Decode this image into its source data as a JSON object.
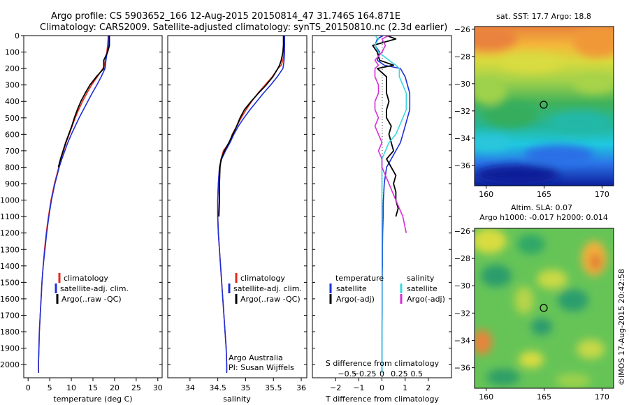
{
  "header": {
    "title_line1": "Argo profile: CS 5903652_166 12-Aug-2015 20150814_47 31.746S 164.871E",
    "title_line2": "Climatology: CARS2009. Satellite-adjusted climatology: synTS_20150810.nc (2.3d earlier)"
  },
  "colors": {
    "climatology": "#e8291c",
    "satellite": "#1d2fd8",
    "argo": "#000000",
    "salinity_satellite": "#39d8e0",
    "salinity_argo": "#d62fd6",
    "map_marker": "#000000"
  },
  "chart_data": [
    {
      "type": "line",
      "panel": "temperature",
      "xlabel": "temperature (deg C)",
      "xlim": [
        -1,
        31
      ],
      "xticks": [
        0,
        5,
        10,
        15,
        20,
        25,
        30
      ],
      "ylim": [
        2080,
        0
      ],
      "yticks": [
        0,
        100,
        200,
        300,
        400,
        500,
        600,
        700,
        800,
        900,
        1000,
        1100,
        1200,
        1300,
        1400,
        1500,
        1600,
        1700,
        1800,
        1900,
        2000
      ],
      "depth": [
        0,
        20,
        60,
        100,
        150,
        180,
        200,
        250,
        300,
        350,
        400,
        450,
        500,
        550,
        600,
        650,
        700,
        750,
        800,
        900,
        1000,
        1100,
        1200,
        1300,
        1400,
        1500,
        1600,
        1700,
        1800,
        1900,
        2000,
        2050
      ],
      "series": [
        {
          "name": "climatology",
          "color_key": "climatology",
          "values": [
            18.5,
            18.5,
            18.4,
            18.2,
            17.9,
            17.7,
            17.3,
            16.0,
            14.7,
            13.6,
            12.6,
            11.7,
            10.9,
            10.2,
            9.5,
            8.8,
            8.2,
            7.6,
            7.1,
            6.1,
            5.3,
            4.7,
            4.2,
            3.8,
            3.5,
            3.2,
            3.0,
            2.8,
            2.6,
            2.5,
            2.4,
            2.4
          ]
        },
        {
          "name": "satellite-adj. clim.",
          "color_key": "satellite",
          "values": [
            18.6,
            18.6,
            18.5,
            18.3,
            18.0,
            17.9,
            17.8,
            16.9,
            15.9,
            14.8,
            13.8,
            12.8,
            11.8,
            10.9,
            10.0,
            9.2,
            8.5,
            7.8,
            7.2,
            6.2,
            5.4,
            4.8,
            4.3,
            3.9,
            3.5,
            3.2,
            3.0,
            2.8,
            2.6,
            2.5,
            2.4,
            2.4
          ]
        },
        {
          "name": "Argo(..raw -QC)",
          "color_key": "argo",
          "values": [
            18.8,
            18.8,
            18.8,
            18.4,
            17.5,
            17.5,
            17.5,
            15.8,
            14.3,
            13.2,
            12.2,
            11.4,
            10.7,
            10.1,
            9.4,
            8.7,
            8.1,
            7.5,
            7.0
          ]
        }
      ],
      "legend": [
        "climatology",
        "satellite-adj. clim.",
        "Argo(..raw -QC)"
      ]
    },
    {
      "type": "line",
      "panel": "salinity",
      "xlabel": "salinity",
      "xlim": [
        33.6,
        36.1
      ],
      "xticks": [
        34,
        34.5,
        35,
        35.5,
        36
      ],
      "ylim": [
        2080,
        0
      ],
      "depth": [
        0,
        20,
        60,
        100,
        150,
        180,
        200,
        250,
        300,
        350,
        400,
        450,
        500,
        550,
        600,
        650,
        700,
        750,
        800,
        900,
        1000,
        1100,
        1200,
        1300,
        1400,
        1500,
        1600,
        1700,
        1800,
        1900,
        2000,
        2050
      ],
      "series": [
        {
          "name": "climatology",
          "color_key": "climatology",
          "values": [
            35.69,
            35.69,
            35.69,
            35.69,
            35.67,
            35.64,
            35.58,
            35.48,
            35.35,
            35.22,
            35.11,
            35.01,
            34.92,
            34.84,
            34.76,
            34.71,
            34.6,
            34.56,
            34.53,
            34.51,
            34.5,
            34.5,
            34.51,
            34.53,
            34.55,
            34.57,
            34.59,
            34.61,
            34.63,
            34.65,
            34.66,
            34.66
          ]
        },
        {
          "name": "satellite-adj. clim.",
          "color_key": "satellite",
          "values": [
            35.7,
            35.7,
            35.7,
            35.7,
            35.69,
            35.68,
            35.67,
            35.57,
            35.45,
            35.32,
            35.2,
            35.08,
            34.97,
            34.87,
            34.79,
            34.72,
            34.64,
            34.57,
            34.53,
            34.51,
            34.5,
            34.5,
            34.51,
            34.53,
            34.55,
            34.57,
            34.59,
            34.61,
            34.63,
            34.65,
            34.66,
            34.66
          ]
        },
        {
          "name": "Argo(..raw -QC)",
          "color_key": "argo",
          "values": [
            35.68,
            35.68,
            35.68,
            35.67,
            35.64,
            35.61,
            35.58,
            35.49,
            35.37,
            35.23,
            35.1,
            34.98,
            34.9,
            34.84,
            34.77,
            34.7,
            34.62,
            34.56,
            34.54,
            34.53,
            34.53,
            34.52
          ]
        }
      ],
      "legend": [
        "climatology",
        "satellite-adj. clim.",
        "Argo(..raw -QC)"
      ],
      "annotation": [
        "Argo Australia",
        "PI: Susan Wijffels"
      ]
    },
    {
      "type": "line",
      "panel": "difference",
      "xlabel_bottom": "T difference from climatology",
      "xlabel_top": "S difference from climatology",
      "xlim": [
        -3,
        3
      ],
      "xticks_bottom": [
        -2,
        -1,
        0,
        1,
        2
      ],
      "xticks_top": [
        -0.5,
        -0.25,
        0,
        0.25,
        0.5
      ],
      "ylim": [
        2080,
        0
      ],
      "depth": [
        0,
        20,
        60,
        100,
        150,
        180,
        200,
        250,
        300,
        350,
        400,
        450,
        500,
        550,
        600,
        650,
        700,
        750,
        800,
        850,
        900,
        950,
        1000,
        1050,
        1100,
        1200,
        1300,
        1400,
        1500,
        1600,
        1700,
        1800,
        1900,
        2000,
        2050
      ],
      "series": [
        {
          "name": "temperature satellite",
          "color_key": "satellite",
          "values": [
            0.05,
            -0.2,
            -0.3,
            -0.1,
            -0.2,
            0.1,
            0.8,
            1.0,
            1.1,
            1.2,
            1.2,
            1.2,
            1.1,
            1.0,
            0.9,
            0.8,
            0.6,
            0.4,
            0.2,
            0.15,
            0.1,
            0.08,
            0.06,
            0.05,
            0.05,
            0.03,
            0.02,
            0.02,
            0.01,
            0.01,
            0.01,
            0.0,
            0.0,
            0.0,
            0.0
          ]
        },
        {
          "name": "temperature Argo(-adj)",
          "color_key": "argo",
          "values": [
            0.2,
            0.6,
            -0.4,
            -0.2,
            -0.1,
            0.5,
            -0.2,
            0.2,
            0.2,
            0.2,
            0.3,
            0.2,
            0.2,
            0.4,
            0.3,
            0.4,
            0.5,
            0.2,
            0.4,
            0.6,
            0.5,
            0.6,
            0.6,
            0.7,
            0.6
          ]
        },
        {
          "name": "salinity satellite",
          "color_key": "salinity_satellite",
          "values": [
            -0.1,
            -0.05,
            -0.1,
            -0.05,
            0.1,
            0.2,
            0.25,
            0.25,
            0.3,
            0.35,
            0.35,
            0.35,
            0.3,
            0.25,
            0.2,
            0.1,
            0.05,
            0.0,
            0.0,
            0.0,
            0.0,
            0.0,
            0.0,
            0.0,
            0.0,
            0.0,
            0.0,
            0.0,
            0.0,
            0.0,
            0.0,
            0.0,
            0.0,
            0.0,
            0.0
          ]
        },
        {
          "name": "salinity Argo(-adj)",
          "color_key": "salinity_argo",
          "values": [
            0.1,
            0.0,
            0.05,
            0.0,
            -0.1,
            -0.05,
            -0.1,
            -0.1,
            -0.05,
            -0.05,
            -0.1,
            -0.1,
            -0.05,
            -0.1,
            -0.05,
            0.0,
            -0.05,
            0.0,
            0.0,
            0.05,
            0.1,
            0.15,
            0.2,
            0.25,
            0.3,
            0.35
          ]
        }
      ],
      "legend_temperature": {
        "heading": "temperature",
        "items": [
          "satellite",
          "Argo(-adj)"
        ]
      },
      "legend_salinity": {
        "heading": "salinity",
        "items": [
          "satellite",
          "Argo(-adj)"
        ]
      }
    },
    {
      "type": "heatmap",
      "panel": "sst_map",
      "title": "sat. SST: 17.7 Argo: 18.8",
      "xticks": [
        160,
        165,
        170
      ],
      "yticks": [
        -26,
        -28,
        -30,
        -32,
        -34,
        -36
      ],
      "xlim": [
        159,
        171
      ],
      "ylim": [
        -37.5,
        -25.8
      ],
      "marker": {
        "lon": 164.87,
        "lat": -31.75
      }
    },
    {
      "type": "heatmap",
      "panel": "sla_map",
      "title_line1": "Altim. SLA: 0.07",
      "title_line2": "Argo h1000: -0.017 h2000: 0.014",
      "xticks": [
        160,
        165,
        170
      ],
      "yticks": [
        -26,
        -28,
        -30,
        -32,
        -34,
        -36
      ],
      "xlim": [
        159,
        171
      ],
      "ylim": [
        -37.5,
        -25.8
      ],
      "marker": {
        "lon": 164.87,
        "lat": -31.75
      }
    }
  ],
  "credit": "©IMOS 17-Aug-2015 20:42:58"
}
